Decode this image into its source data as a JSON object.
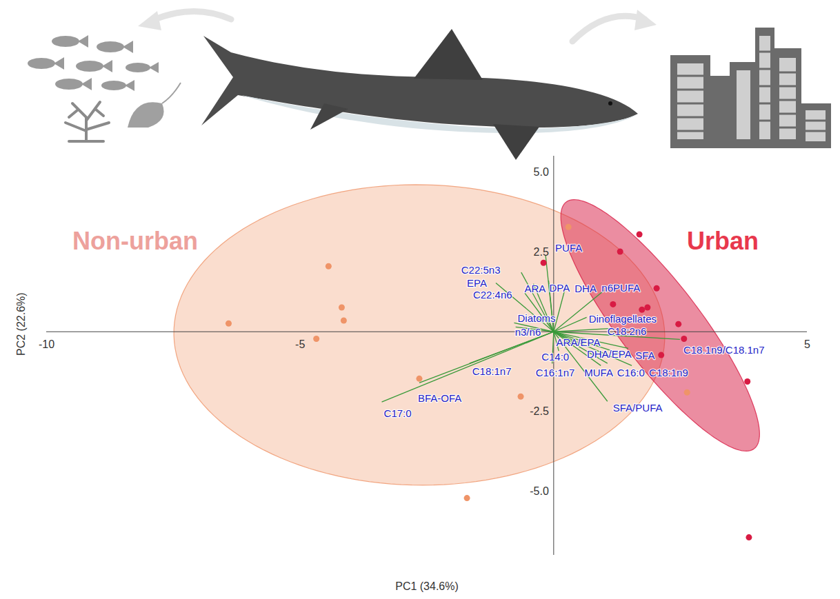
{
  "chart_data": {
    "type": "scatter",
    "x_label": "PC1 (34.6%)",
    "y_label": "PC2 (22.6%)",
    "xlim": [
      -10,
      5
    ],
    "ylim": [
      -7,
      5.5
    ],
    "xticks": [
      -10,
      -5,
      5
    ],
    "yticks": [
      {
        "value": -5,
        "label": "-5.0"
      },
      {
        "value": -2.5,
        "label": "-2.5"
      },
      {
        "value": 2.5,
        "label": "2.5"
      },
      {
        "value": 5,
        "label": "5.0"
      }
    ],
    "grid": false,
    "series": [
      {
        "name": "Non-urban",
        "color": "#ef9468",
        "marker": "circle",
        "x": [
          0.29,
          -4.44,
          -4.18,
          -4.14,
          -6.41,
          -4.68,
          -2.65,
          -0.65,
          -1.71,
          2.63
        ],
        "y": [
          3.28,
          2.05,
          0.76,
          0.35,
          0.26,
          -0.22,
          -1.47,
          -2.03,
          -5.21,
          -1.9
        ],
        "ellipse": {
          "major_axis": [
            [
              -7.39,
              0.91
            ],
            [
              2.09,
              -1.11
            ]
          ],
          "minor_radius": 4.7
        }
      },
      {
        "name": "Urban",
        "color": "#d81b43",
        "marker": "circle",
        "x": [
          1.69,
          1.31,
          2.03,
          1.17,
          1.85,
          1.74,
          2.46,
          2.57,
          2.12,
          3.82,
          3.85,
          -0.2
        ],
        "y": [
          3.05,
          2.51,
          1.36,
          0.86,
          0.76,
          0.69,
          0.24,
          -0.22,
          -0.73,
          -1.56,
          -6.44,
          2.16
        ],
        "ellipse": {
          "major_axis": [
            [
              0.32,
              4.12
            ],
            [
              3.88,
              -3.72
            ]
          ],
          "minor_radius": 0.9
        }
      }
    ],
    "loadings": {
      "color": "#3a9a3a",
      "vectors": [
        {
          "label": "C22:5n3",
          "x": -0.64,
          "y": 1.86
        },
        {
          "label": "PUFA",
          "x": -0.16,
          "y": 2.4
        },
        {
          "label": "EPA",
          "x": -1.14,
          "y": 1.53
        },
        {
          "label": "C22:4n6",
          "x": -0.57,
          "y": 1.21
        },
        {
          "label": "ARA",
          "x": -0.4,
          "y": 1.5
        },
        {
          "label": "DPA",
          "x": -0.1,
          "y": 1.6
        },
        {
          "label": "DHA",
          "x": 0.25,
          "y": 1.5
        },
        {
          "label": "n6PUFA",
          "x": 1.0,
          "y": 1.3
        },
        {
          "label": "Diatoms",
          "x": -0.78,
          "y": 0.28
        },
        {
          "label": "n3/n6",
          "x": -0.75,
          "y": 0.15
        },
        {
          "label": "Dinoflagellates",
          "x": 0.65,
          "y": 0.45
        },
        {
          "label": "C18:2n6",
          "x": 1.1,
          "y": 0.1
        },
        {
          "label": "C18.1n9/C18.1n7",
          "x": 2.49,
          "y": -0.24
        },
        {
          "label": "ARA/EPA",
          "x": 0.5,
          "y": -0.4
        },
        {
          "label": "DHA/EPA",
          "x": 1.47,
          "y": -0.52
        },
        {
          "label": "SFA",
          "x": 1.5,
          "y": -0.78
        },
        {
          "label": "C14:0",
          "x": 0.1,
          "y": -0.6
        },
        {
          "label": "C16:1n7",
          "x": -0.03,
          "y": -1.0
        },
        {
          "label": "MUFA",
          "x": 0.93,
          "y": -1.06
        },
        {
          "label": "C16:0",
          "x": 1.06,
          "y": -0.99
        },
        {
          "label": "C18:1n9",
          "x": 1.54,
          "y": -1.06
        },
        {
          "label": "SFA/PUFA",
          "x": 1.06,
          "y": -2.18
        },
        {
          "label": "C18:1n7",
          "x": -1.66,
          "y": -0.99
        },
        {
          "label": "BFA-OFA",
          "x": -2.65,
          "y": -1.6
        },
        {
          "label": "C17:0",
          "x": -3.39,
          "y": -2.2
        }
      ]
    }
  }
}
